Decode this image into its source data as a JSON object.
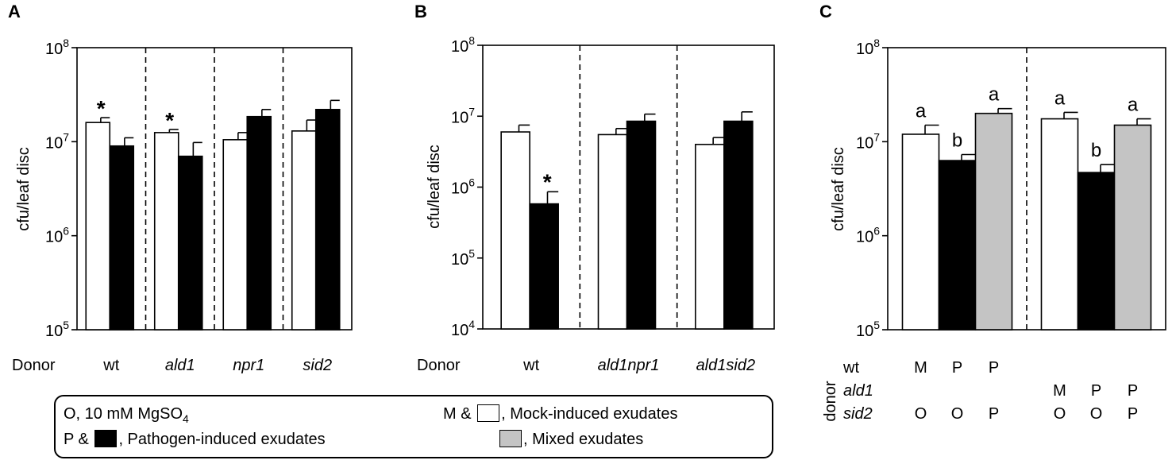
{
  "panels": [
    {
      "letter": "A",
      "ylabel": "cfu/leaf disc",
      "row_label": "Donor",
      "groups": [
        "wt",
        "ald1",
        "npr1",
        "sid2"
      ],
      "group_italic": [
        false,
        true,
        true,
        true
      ]
    },
    {
      "letter": "B",
      "ylabel": "cfu/leaf disc",
      "row_label": "Donor",
      "groups": [
        "wt",
        "ald1npr1",
        "ald1sid2"
      ],
      "group_italic": [
        false,
        true,
        true
      ]
    },
    {
      "letter": "C",
      "ylabel": "cfu/leaf disc",
      "side_label": "donor",
      "rows": [
        {
          "label": "wt",
          "italic": false,
          "codes": [
            "M",
            "P",
            "P",
            "",
            "",
            ""
          ]
        },
        {
          "label": "ald1",
          "italic": true,
          "codes": [
            "",
            "",
            "",
            "M",
            "P",
            "P"
          ]
        },
        {
          "label": "sid2",
          "italic": true,
          "codes": [
            "O",
            "O",
            "P",
            "O",
            "O",
            "P"
          ]
        }
      ]
    }
  ],
  "legend": {
    "o_prefix": "O, 10 mM MgSO",
    "o_sub": "4",
    "p_prefix": "P &",
    "p_text": ",   Pathogen-induced exudates",
    "m_prefix": "M &",
    "m_text": ",  Mock-induced exudates",
    "mixed_text": ",  Mixed exudates"
  },
  "colors": {
    "mock": "#ffffff",
    "pathogen": "#000000",
    "mixed": "#c4c4c4",
    "axis": "#000000"
  },
  "chart_data": [
    {
      "type": "bar",
      "panel": "A",
      "yscale": "log",
      "ylim": [
        100000,
        100000000
      ],
      "yticks": [
        100000,
        1000000,
        10000000,
        100000000
      ],
      "ytick_labels": [
        [
          "10",
          "5"
        ],
        [
          "10",
          "6"
        ],
        [
          "10",
          "7"
        ],
        [
          "10",
          "8"
        ]
      ],
      "ylabel": "cfu/leaf disc",
      "categories": [
        "wt",
        "ald1",
        "npr1",
        "sid2"
      ],
      "series": [
        {
          "fill": "mock",
          "values": [
            16000000,
            12500000,
            10500000,
            13000000
          ],
          "errors": [
            2000000,
            1000000,
            2000000,
            4000000
          ]
        },
        {
          "fill": "pathogen",
          "values": [
            9000000,
            7000000,
            18500000,
            22000000
          ],
          "errors": [
            2000000,
            2800000,
            3500000,
            5500000
          ]
        }
      ],
      "annotations": [
        [
          "*",
          ""
        ],
        [
          "*",
          ""
        ],
        [
          "",
          ""
        ],
        [
          "",
          ""
        ]
      ]
    },
    {
      "type": "bar",
      "panel": "B",
      "yscale": "log",
      "ylim": [
        10000,
        100000000
      ],
      "yticks": [
        10000,
        100000,
        1000000,
        10000000,
        100000000
      ],
      "ytick_labels": [
        [
          "10",
          "4"
        ],
        [
          "10",
          "5"
        ],
        [
          "10",
          "6"
        ],
        [
          "10",
          "7"
        ],
        [
          "10",
          "8"
        ]
      ],
      "ylabel": "cfu/leaf disc",
      "categories": [
        "wt",
        "ald1npr1",
        "ald1sid2"
      ],
      "series": [
        {
          "fill": "mock",
          "values": [
            6000000,
            5500000,
            4000000
          ],
          "errors": [
            1500000,
            1200000,
            1000000
          ]
        },
        {
          "fill": "pathogen",
          "values": [
            580000,
            8500000,
            8500000
          ],
          "errors": [
            280000,
            2200000,
            3000000
          ]
        }
      ],
      "annotations": [
        [
          "",
          "*"
        ],
        [
          "",
          ""
        ],
        [
          "",
          ""
        ]
      ]
    },
    {
      "type": "bar",
      "panel": "C",
      "yscale": "log",
      "ylim": [
        100000,
        100000000
      ],
      "yticks": [
        100000,
        1000000,
        10000000,
        100000000
      ],
      "ytick_labels": [
        [
          "10",
          "5"
        ],
        [
          "10",
          "6"
        ],
        [
          "10",
          "7"
        ],
        [
          "10",
          "8"
        ]
      ],
      "ylabel": "cfu/leaf disc",
      "bars": [
        {
          "fill": "mock",
          "value": 12000000,
          "error": 3000000,
          "label": "a"
        },
        {
          "fill": "pathogen",
          "value": 6300000,
          "error": 1000000,
          "label": "b"
        },
        {
          "fill": "mixed",
          "value": 20000000,
          "error": 2500000,
          "label": "a"
        },
        {
          "fill": "mock",
          "value": 17500000,
          "error": 3000000,
          "label": "a"
        },
        {
          "fill": "pathogen",
          "value": 4700000,
          "error": 1000000,
          "label": "b"
        },
        {
          "fill": "mixed",
          "value": 15000000,
          "error": 2500000,
          "label": "a"
        }
      ]
    }
  ]
}
